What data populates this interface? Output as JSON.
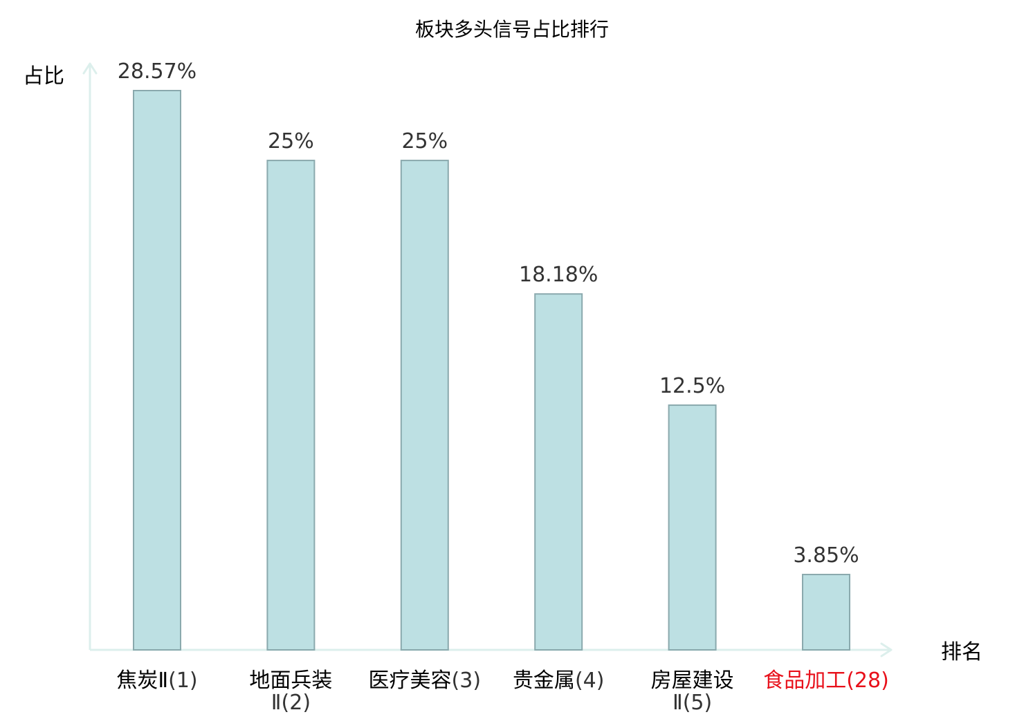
{
  "chart_data": {
    "type": "bar",
    "title": "板块多头信号占比排行",
    "ylabel": "占比",
    "xlabel": "排名",
    "ylim": [
      0,
      30
    ],
    "grid": false,
    "categories": [
      {
        "name": "焦炭Ⅱ",
        "rank": "(1)",
        "highlight": false
      },
      {
        "name": "地面兵装Ⅱ",
        "rank": "(2)",
        "highlight": false
      },
      {
        "name": "医疗美容",
        "rank": "(3)",
        "highlight": false
      },
      {
        "name": "贵金属",
        "rank": "(4)",
        "highlight": false
      },
      {
        "name": "房屋建设Ⅱ",
        "rank": "(5)",
        "highlight": false
      },
      {
        "name": "食品加工",
        "rank": "(28)",
        "highlight": true
      }
    ],
    "values": [
      28.57,
      25,
      25,
      18.18,
      12.5,
      3.85
    ],
    "data_labels": [
      "28.57%",
      "25%",
      "25%",
      "18.18%",
      "12.5%",
      "3.85%"
    ]
  },
  "colors": {
    "bar_fill": "#bde0e3",
    "bar_stroke": "#8aa9ad",
    "axis": "#dcefec",
    "text": "#333333",
    "label_text": "#000000",
    "highlight": "#e8101a"
  }
}
